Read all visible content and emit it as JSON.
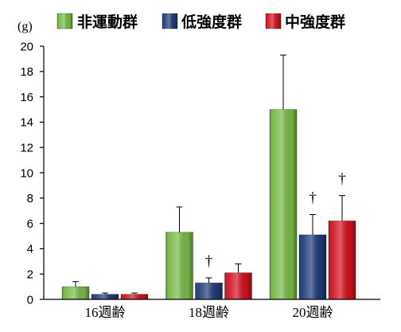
{
  "chart_data": {
    "type": "bar",
    "ylabel": "(g)",
    "categories": [
      "16週齢",
      "18週齢",
      "20週齢"
    ],
    "series": [
      {
        "name": "非運動群",
        "color": "#76b943",
        "values": [
          1.0,
          5.3,
          15.0
        ],
        "error": [
          0.4,
          2.0,
          4.3
        ],
        "marks": [
          "",
          "",
          ""
        ]
      },
      {
        "name": "低強度群",
        "color": "#1c3a78",
        "values": [
          0.4,
          1.3,
          5.1
        ],
        "error": [
          0.1,
          0.4,
          1.6
        ],
        "marks": [
          "",
          "†",
          "†"
        ]
      },
      {
        "name": "中強度群",
        "color": "#d0101c",
        "values": [
          0.4,
          2.1,
          6.2
        ],
        "error": [
          0.1,
          0.7,
          2.0
        ],
        "marks": [
          "",
          "",
          "†"
        ]
      }
    ],
    "ylim": [
      0,
      20
    ],
    "yticks": [
      0,
      2,
      4,
      6,
      8,
      10,
      12,
      14,
      16,
      18,
      20
    ],
    "legend": "top",
    "grid": false
  }
}
